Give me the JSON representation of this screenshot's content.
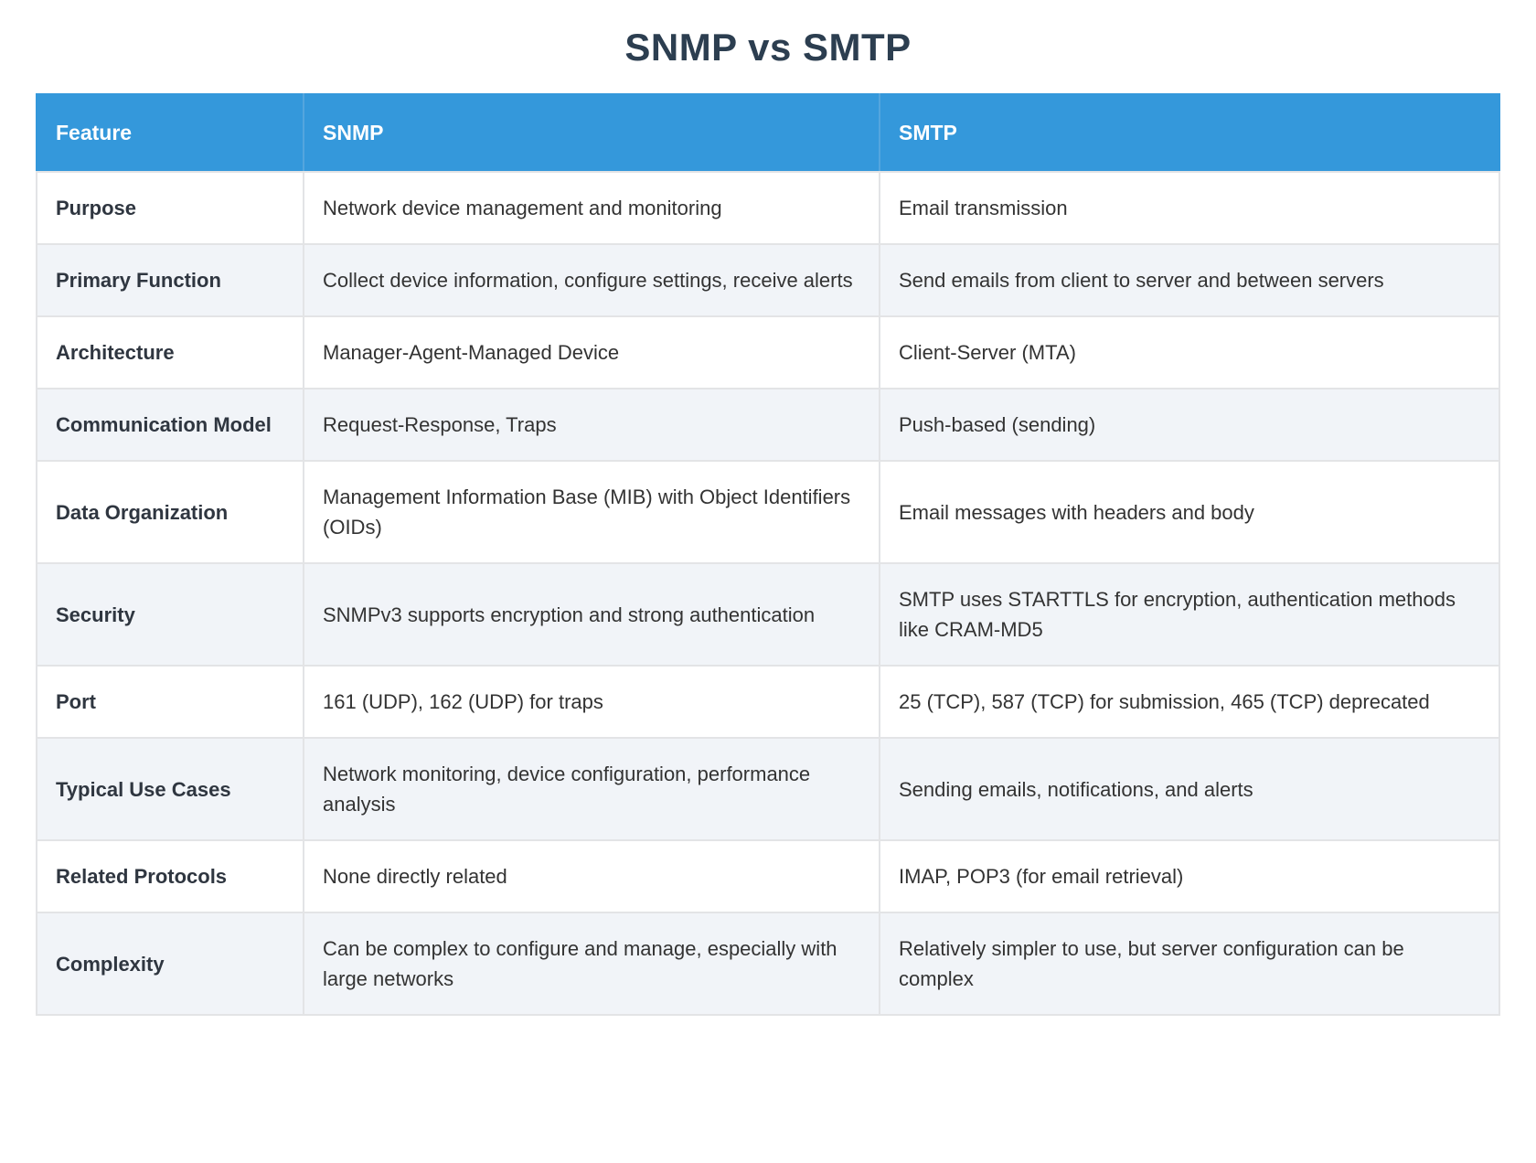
{
  "page": {
    "title": "SNMP vs SMTP"
  },
  "table": {
    "columns": [
      "Feature",
      "SNMP",
      "SMTP"
    ],
    "rows": [
      {
        "feature": "Purpose",
        "snmp": "Network device management and monitoring",
        "smtp": "Email transmission"
      },
      {
        "feature": "Primary Function",
        "snmp": "Collect device information, configure settings, receive alerts",
        "smtp": "Send emails from client to server and between servers"
      },
      {
        "feature": "Architecture",
        "snmp": "Manager-Agent-Managed Device",
        "smtp": "Client-Server (MTA)"
      },
      {
        "feature": "Communication Model",
        "snmp": "Request-Response, Traps",
        "smtp": "Push-based (sending)"
      },
      {
        "feature": "Data Organization",
        "snmp": "Management Information Base (MIB) with Object Identifiers (OIDs)",
        "smtp": "Email messages with headers and body"
      },
      {
        "feature": "Security",
        "snmp": "SNMPv3 supports encryption and strong authentication",
        "smtp": "SMTP uses STARTTLS for encryption, authentication methods like CRAM-MD5"
      },
      {
        "feature": "Port",
        "snmp": "161 (UDP), 162 (UDP) for traps",
        "smtp": "25 (TCP), 587 (TCP) for submission, 465 (TCP) deprecated"
      },
      {
        "feature": "Typical Use Cases",
        "snmp": "Network monitoring, device configuration, performance analysis",
        "smtp": "Sending emails, notifications, and alerts"
      },
      {
        "feature": "Related Protocols",
        "snmp": "None directly related",
        "smtp": "IMAP, POP3 (for email retrieval)"
      },
      {
        "feature": "Complexity",
        "snmp": "Can be complex to configure and manage, especially with large networks",
        "smtp": "Relatively simpler to use, but server configuration can be complex"
      }
    ]
  },
  "colors": {
    "header_bg": "#3498db",
    "header_text": "#ffffff",
    "header_divider": "#54a5de",
    "row_alt_bg": "#f1f4f8",
    "row_bg": "#ffffff",
    "border": "#e3e4e6",
    "title_text": "#2c3e50",
    "body_text": "#333333"
  }
}
